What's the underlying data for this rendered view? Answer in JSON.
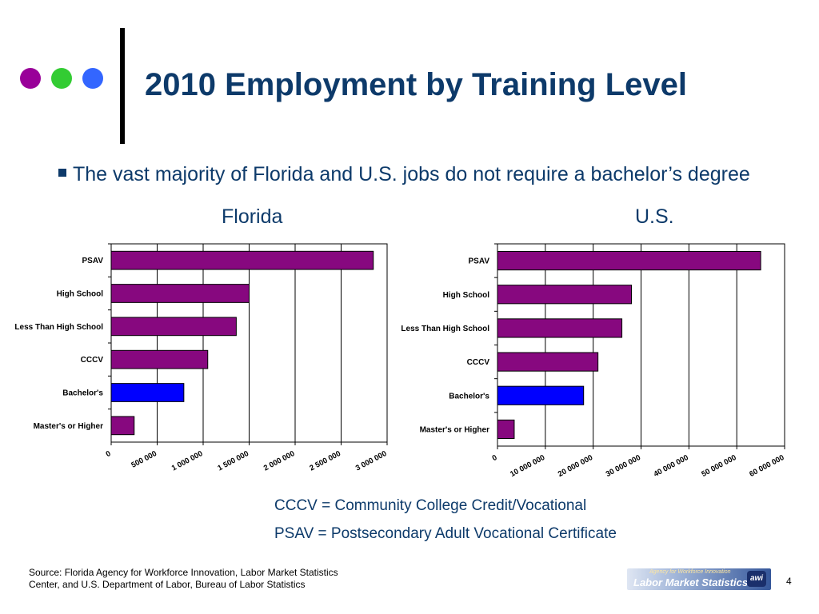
{
  "title": "2010 Employment by Training Level",
  "bullet": "The vast majority of Florida and U.S. jobs do not require a bachelor’s degree",
  "colors": {
    "title": "#0d3a6a",
    "bar": "#87087f",
    "bar_highlight": "#0000ff",
    "dot_purple": "#990099",
    "dot_green": "#33cc33",
    "dot_blue": "#3366ff"
  },
  "chart_data": [
    {
      "type": "bar",
      "orientation": "horizontal",
      "title": "Florida",
      "categories": [
        "PSAV",
        "High School",
        "Less Than High School",
        "CCCV",
        "Bachelor's",
        "Master's or Higher"
      ],
      "values": [
        2850000,
        1500000,
        1360000,
        1050000,
        790000,
        250000
      ],
      "highlight": "Bachelor's",
      "xlim": [
        0,
        3000000
      ],
      "xticks": [
        0,
        500000,
        1000000,
        1500000,
        2000000,
        2500000,
        3000000
      ],
      "xtick_labels": [
        "0",
        "500 000",
        "1 000 000",
        "1 500 000",
        "2 000 000",
        "2 500 000",
        "3 000 000"
      ],
      "xlabel": "",
      "ylabel": "",
      "grid": "vertical"
    },
    {
      "type": "bar",
      "orientation": "horizontal",
      "title": "U.S.",
      "categories": [
        "PSAV",
        "High School",
        "Less Than High School",
        "CCCV",
        "Bachelor's",
        "Master's or Higher"
      ],
      "values": [
        55000000,
        28000000,
        26000000,
        21000000,
        18000000,
        3500000
      ],
      "highlight": "Bachelor's",
      "xlim": [
        0,
        60000000
      ],
      "xticks": [
        0,
        10000000,
        20000000,
        30000000,
        40000000,
        50000000,
        60000000
      ],
      "xtick_labels": [
        "0",
        "10 000 000",
        "20 000 000",
        "30 000 000",
        "40 000 000",
        "50 000 000",
        "60 000 000"
      ],
      "xlabel": "",
      "ylabel": "",
      "grid": "vertical"
    }
  ],
  "definitions": [
    "CCCV = Community College Credit/Vocational",
    "PSAV = Postsecondary Adult Vocational Certificate"
  ],
  "source": [
    "Source: Florida Agency for Workforce Innovation, Labor Market Statistics",
    "Center, and U.S. Department of Labor, Bureau of Labor Statistics"
  ],
  "logo": {
    "top_text": "Agency for Workforce Innovation",
    "main_text": "Labor Market Statistics",
    "badge": "awi"
  },
  "page_number": "4"
}
